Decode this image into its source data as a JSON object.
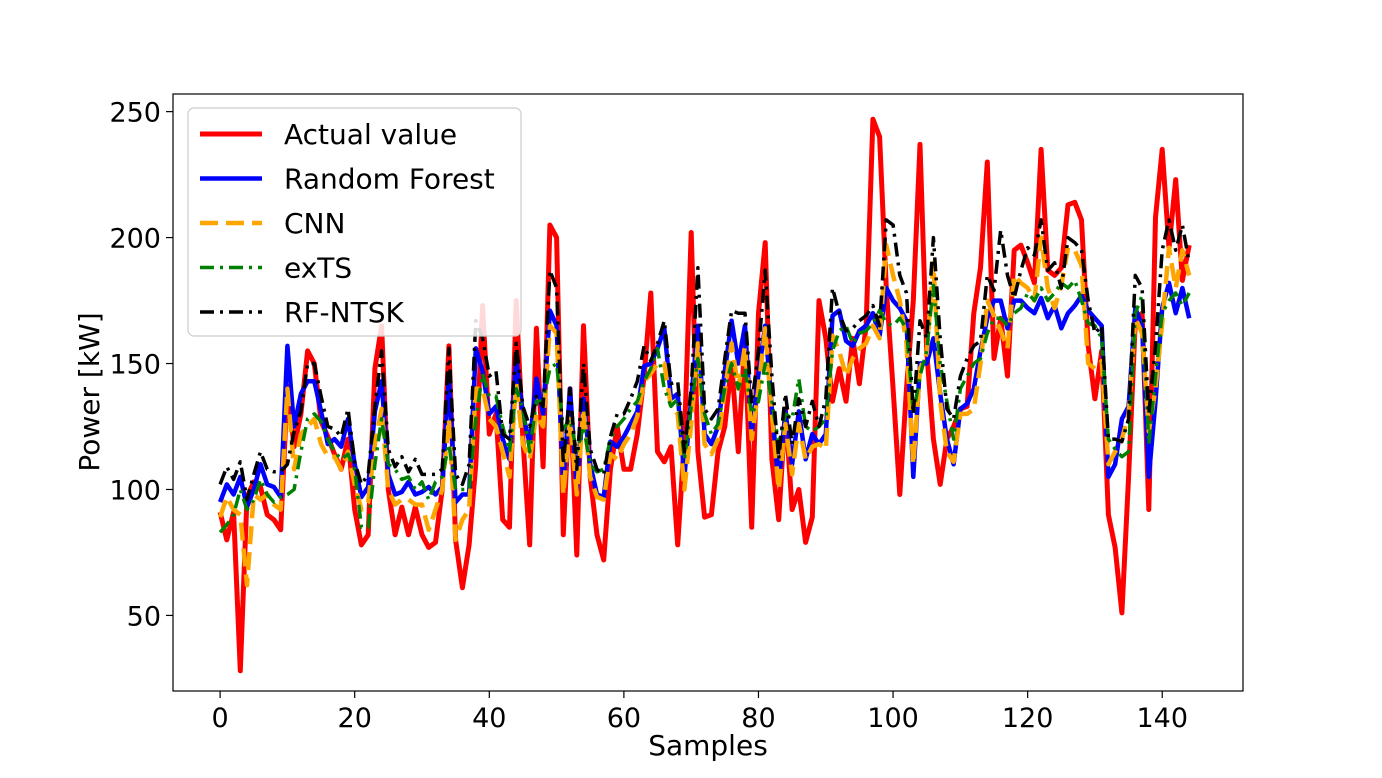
{
  "chart_data": {
    "type": "line",
    "title": "",
    "xlabel": "Samples",
    "ylabel": "Power [kW]",
    "xlim": [
      -7,
      152
    ],
    "ylim": [
      20,
      257
    ],
    "xticks": [
      0,
      20,
      40,
      60,
      80,
      100,
      120,
      140
    ],
    "yticks": [
      50,
      100,
      150,
      200,
      250
    ],
    "legend_position": "top-left",
    "series": [
      {
        "name": "Actual value",
        "color": "#ff0000",
        "style": "solid",
        "values": [
          91,
          80,
          91,
          28,
          97,
          103,
          101,
          90,
          88,
          84,
          141,
          117,
          130,
          155,
          150,
          127,
          121,
          114,
          108,
          120,
          92,
          78,
          82,
          148,
          165,
          100,
          82,
          93,
          82,
          93,
          82,
          77,
          79,
          100,
          157,
          80,
          61,
          78,
          110,
          173,
          122,
          130,
          88,
          85,
          175,
          120,
          78,
          164,
          109,
          205,
          200,
          82,
          140,
          74,
          165,
          105,
          82,
          72,
          108,
          125,
          108,
          108,
          122,
          145,
          178,
          115,
          111,
          117,
          78,
          120,
          202,
          115,
          89,
          90,
          115,
          125,
          150,
          115,
          160,
          85,
          170,
          198,
          112,
          88,
          132,
          92,
          100,
          79,
          89,
          175,
          160,
          135,
          148,
          135,
          160,
          142,
          165,
          247,
          240,
          180,
          140,
          98,
          140,
          175,
          237,
          155,
          120,
          102,
          120,
          125,
          132,
          133,
          170,
          188,
          230,
          152,
          168,
          145,
          195,
          197,
          190,
          182,
          235,
          187,
          185,
          188,
          213,
          214,
          207,
          157,
          136,
          155,
          90,
          77,
          51,
          105,
          167,
          170,
          92,
          208,
          235,
          196,
          223,
          183,
          197
        ]
      },
      {
        "name": "Random Forest",
        "color": "#0000ff",
        "style": "solid",
        "values": [
          95,
          102,
          98,
          105,
          93,
          100,
          110,
          102,
          101,
          97,
          157,
          125,
          138,
          143,
          143,
          131,
          118,
          120,
          117,
          128,
          110,
          97,
          101,
          131,
          143,
          106,
          98,
          99,
          103,
          98,
          99,
          101,
          98,
          101,
          145,
          95,
          98,
          98,
          156,
          147,
          130,
          133,
          120,
          112,
          152,
          130,
          118,
          144,
          130,
          171,
          165,
          102,
          140,
          100,
          136,
          110,
          98,
          97,
          119,
          117,
          121,
          126,
          131,
          149,
          150,
          156,
          164,
          136,
          138,
          105,
          136,
          165,
          122,
          118,
          125,
          147,
          167,
          150,
          165,
          122,
          146,
          165,
          132,
          102,
          131,
          110,
          131,
          112,
          122,
          118,
          122,
          169,
          171,
          159,
          157,
          163,
          165,
          170,
          161,
          180,
          175,
          172,
          167,
          105,
          150,
          150,
          160,
          138,
          120,
          110,
          132,
          134,
          140,
          155,
          168,
          175,
          175,
          164,
          175,
          175,
          172,
          170,
          176,
          168,
          173,
          164,
          170,
          173,
          177,
          171,
          168,
          165,
          105,
          110,
          128,
          133,
          172,
          165,
          105,
          135,
          172,
          182,
          170,
          180,
          168
        ]
      },
      {
        "name": "CNN",
        "color": "#ffa500",
        "style": "dashed",
        "values": [
          89,
          97,
          92,
          90,
          62,
          98,
          96,
          98,
          94,
          92,
          140,
          108,
          122,
          125,
          128,
          118,
          113,
          113,
          108,
          115,
          102,
          92,
          95,
          118,
          132,
          100,
          94,
          96,
          96,
          94,
          94,
          84,
          92,
          100,
          128,
          80,
          88,
          92,
          140,
          140,
          128,
          125,
          115,
          105,
          142,
          118,
          112,
          130,
          125,
          165,
          162,
          98,
          128,
          98,
          132,
          105,
          97,
          96,
          114,
          112,
          118,
          122,
          129,
          143,
          146,
          150,
          150,
          133,
          130,
          100,
          126,
          158,
          118,
          114,
          120,
          139,
          158,
          140,
          157,
          120,
          140,
          164,
          130,
          100,
          126,
          106,
          126,
          112,
          117,
          118,
          116,
          161,
          155,
          145,
          152,
          156,
          158,
          165,
          160,
          197,
          185,
          175,
          158,
          110,
          148,
          154,
          190,
          135,
          115,
          111,
          130,
          130,
          132,
          150,
          175,
          169,
          163,
          156,
          185,
          182,
          180,
          175,
          200,
          180,
          172,
          181,
          196,
          195,
          189,
          150,
          148,
          151,
          110,
          115,
          120,
          130,
          168,
          162,
          123,
          140,
          166,
          196,
          180,
          195,
          185
        ]
      },
      {
        "name": "exTS",
        "color": "#008000",
        "style": "dashdot",
        "values": [
          83,
          86,
          90,
          100,
          92,
          96,
          104,
          98,
          95,
          97,
          98,
          100,
          115,
          128,
          130,
          127,
          120,
          115,
          112,
          114,
          108,
          85,
          85,
          110,
          128,
          110,
          108,
          104,
          105,
          100,
          103,
          96,
          103,
          105,
          118,
          100,
          100,
          100,
          128,
          146,
          137,
          137,
          125,
          115,
          140,
          132,
          115,
          135,
          135,
          148,
          150,
          124,
          128,
          115,
          125,
          110,
          107,
          108,
          120,
          125,
          128,
          132,
          135,
          143,
          148,
          156,
          140,
          133,
          136,
          112,
          133,
          152,
          130,
          122,
          126,
          140,
          150,
          140,
          148,
          130,
          135,
          150,
          135,
          118,
          130,
          128,
          144,
          125,
          123,
          125,
          128,
          155,
          163,
          165,
          158,
          162,
          163,
          166,
          171,
          166,
          165,
          168,
          164,
          130,
          145,
          155,
          181,
          150,
          135,
          120,
          140,
          145,
          150,
          152,
          162,
          168,
          168,
          165,
          170,
          172,
          178,
          175,
          180,
          175,
          178,
          182,
          180,
          183,
          175,
          166,
          165,
          160,
          120,
          116,
          113,
          115,
          170,
          177,
          118,
          145,
          170,
          175,
          178,
          173,
          178
        ]
      },
      {
        "name": "RF-NTSK",
        "color": "#000000",
        "style": "dashdot",
        "values": [
          102,
          109,
          104,
          111,
          96,
          106,
          115,
          108,
          107,
          107,
          110,
          123,
          131,
          150,
          150,
          137,
          125,
          124,
          121,
          132,
          111,
          102,
          106,
          133,
          155,
          116,
          109,
          113,
          107,
          112,
          106,
          106,
          106,
          108,
          156,
          106,
          102,
          110,
          167,
          160,
          145,
          147,
          122,
          120,
          158,
          133,
          125,
          137,
          133,
          187,
          180,
          110,
          140,
          108,
          150,
          116,
          108,
          106,
          121,
          130,
          130,
          136,
          143,
          157,
          151,
          158,
          167,
          142,
          143,
          115,
          140,
          188,
          132,
          128,
          132,
          152,
          171,
          170,
          170,
          134,
          155,
          187,
          145,
          112,
          138,
          118,
          136,
          125,
          135,
          125,
          136,
          180,
          170,
          163,
          164,
          167,
          169,
          173,
          165,
          207,
          205,
          185,
          178,
          130,
          167,
          160,
          200,
          160,
          132,
          128,
          145,
          152,
          157,
          159,
          185,
          179,
          203,
          185,
          176,
          187,
          196,
          193,
          207,
          187,
          190,
          180,
          200,
          198,
          195,
          175,
          162,
          165,
          120,
          120,
          119,
          128,
          185,
          180,
          130,
          157,
          195,
          207,
          195,
          205,
          190
        ]
      }
    ]
  }
}
